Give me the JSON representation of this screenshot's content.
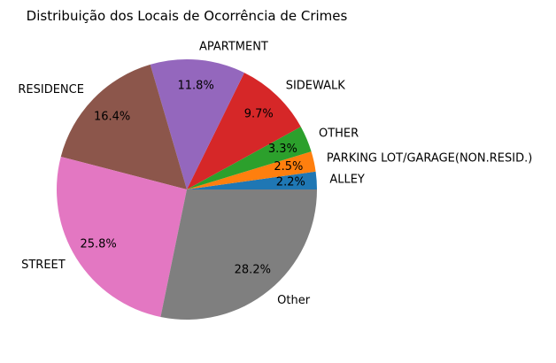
{
  "chart_data": {
    "type": "pie",
    "title": "Distribuição dos Locais de Ocorrência de Crimes",
    "slices": [
      {
        "label": "ALLEY",
        "percent": 2.2,
        "percent_label": "2.2%",
        "color": "#1f77b4"
      },
      {
        "label": "PARKING LOT/GARAGE(NON.RESID.)",
        "percent": 2.5,
        "percent_label": "2.5%",
        "color": "#ff7f0e"
      },
      {
        "label": "OTHER",
        "percent": 3.3,
        "percent_label": "3.3%",
        "color": "#2ca02c"
      },
      {
        "label": "SIDEWALK",
        "percent": 9.7,
        "percent_label": "9.7%",
        "color": "#d62728"
      },
      {
        "label": "APARTMENT",
        "percent": 11.8,
        "percent_label": "11.8%",
        "color": "#9467bd"
      },
      {
        "label": "RESIDENCE",
        "percent": 16.4,
        "percent_label": "16.4%",
        "color": "#8c564b"
      },
      {
        "label": "STREET",
        "percent": 25.8,
        "percent_label": "25.8%",
        "color": "#e377c2"
      },
      {
        "label": "Other",
        "percent": 28.2,
        "percent_label": "28.2%",
        "color": "#7f7f7f"
      }
    ],
    "start_angle_deg": 0,
    "direction": "counterclockwise",
    "legend": "none"
  }
}
